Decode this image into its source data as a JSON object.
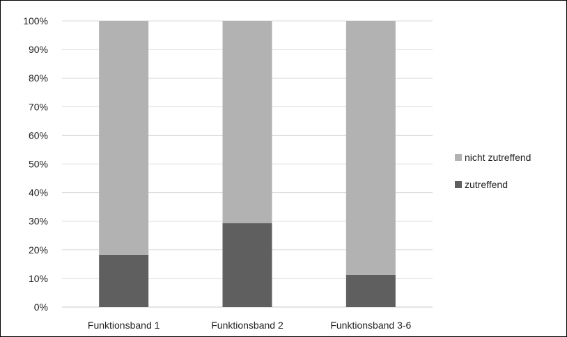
{
  "chart_data": {
    "type": "bar",
    "stacked": true,
    "percent": true,
    "categories": [
      "Funktionsband 1",
      "Funktionsband 2",
      "Funktionsband 3-6"
    ],
    "series": [
      {
        "name": "zutreffend",
        "values": [
          18.3,
          29.4,
          11.2
        ],
        "color": "#5f5f5f"
      },
      {
        "name": "nicht zutreffend",
        "values": [
          81.7,
          70.6,
          88.8
        ],
        "color": "#b2b2b2"
      }
    ],
    "ylim": [
      0,
      100
    ],
    "yticks": [
      "0%",
      "10%",
      "20%",
      "30%",
      "40%",
      "50%",
      "60%",
      "70%",
      "80%",
      "90%",
      "100%"
    ],
    "grid": true,
    "legend": {
      "placement": "right",
      "order": [
        "nicht zutreffend",
        "zutreffend"
      ]
    }
  }
}
